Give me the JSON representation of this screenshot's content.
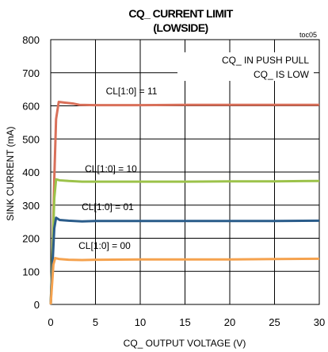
{
  "chart_data": {
    "type": "line",
    "title_line1": "CQ_ CURRENT LIMIT",
    "title_line2": "(LOWSIDE)",
    "figure_tag": "toc05",
    "xlabel": "CQ_ OUTPUT VOLTAGE (V)",
    "ylabel": "SINK CURRENT (mA)",
    "xlim": [
      0,
      30
    ],
    "ylim": [
      0,
      800
    ],
    "xticks": [
      0,
      5,
      10,
      15,
      20,
      25,
      30
    ],
    "yticks": [
      0,
      100,
      200,
      300,
      400,
      500,
      600,
      700,
      800
    ],
    "grid": true,
    "annotations": [
      "CQ_ IN PUSH PULL",
      "CQ_ IS LOW"
    ],
    "series": [
      {
        "name": "CL[1:0] = 11",
        "color": "#d9705a",
        "points": [
          [
            0,
            0
          ],
          [
            0.2,
            150
          ],
          [
            0.4,
            380
          ],
          [
            0.6,
            560
          ],
          [
            0.9,
            612
          ],
          [
            1.5,
            610
          ],
          [
            2.5,
            607
          ],
          [
            3.2,
            603
          ],
          [
            5,
            602
          ],
          [
            10,
            602
          ],
          [
            15,
            603
          ],
          [
            20,
            603
          ],
          [
            25,
            603
          ],
          [
            30,
            603
          ]
        ]
      },
      {
        "name": "CL[1:0] = 10",
        "color": "#9cc24a",
        "points": [
          [
            0,
            0
          ],
          [
            0.2,
            150
          ],
          [
            0.4,
            320
          ],
          [
            0.6,
            378
          ],
          [
            1,
            375
          ],
          [
            2,
            373
          ],
          [
            3.5,
            371
          ],
          [
            5,
            371
          ],
          [
            10,
            371
          ],
          [
            15,
            371
          ],
          [
            20,
            372
          ],
          [
            25,
            372
          ],
          [
            30,
            373
          ]
        ]
      },
      {
        "name": "CL[1:0] = 01",
        "color": "#2a5c8a",
        "points": [
          [
            0,
            0
          ],
          [
            0.2,
            120
          ],
          [
            0.4,
            230
          ],
          [
            0.6,
            262
          ],
          [
            1,
            255
          ],
          [
            2,
            253
          ],
          [
            3.5,
            251
          ],
          [
            5,
            252
          ],
          [
            10,
            252
          ],
          [
            15,
            252
          ],
          [
            20,
            252
          ],
          [
            25,
            252
          ],
          [
            30,
            253
          ]
        ]
      },
      {
        "name": "CL[1:0] = 00",
        "color": "#f5a24e",
        "points": [
          [
            0,
            0
          ],
          [
            0.15,
            60
          ],
          [
            0.3,
            120
          ],
          [
            0.5,
            140
          ],
          [
            1,
            137
          ],
          [
            2,
            135
          ],
          [
            3.5,
            134
          ],
          [
            5,
            135
          ],
          [
            10,
            136
          ],
          [
            15,
            136
          ],
          [
            20,
            136
          ],
          [
            25,
            137
          ],
          [
            30,
            138
          ]
        ]
      }
    ]
  }
}
